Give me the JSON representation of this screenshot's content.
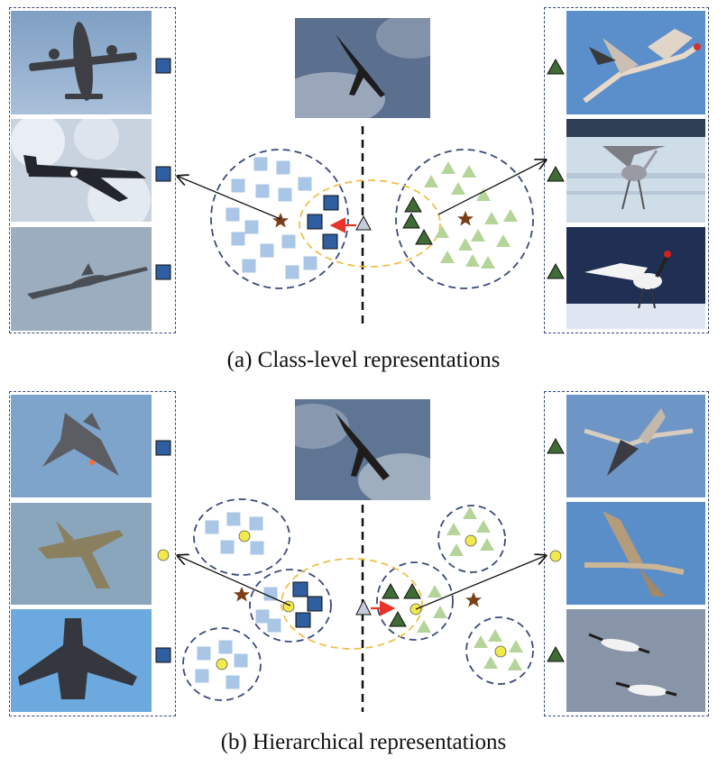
{
  "captions": {
    "a": "(a) Class-level representations",
    "b": "(b) Hierarchical representations"
  },
  "colors": {
    "dark_square": "#2f5fa0",
    "light_square": "#a9c6e6",
    "dark_triangle": "#3f6b34",
    "light_triangle": "#b5d49a",
    "yellow_circle": "#f2ea4a",
    "query_triangle": "#c5cbd8",
    "star": "#7a3f18",
    "prototype_ellipse": "#f1c04a",
    "cluster_ellipse": "#3a4a7a",
    "red_arrow": "#e8342a",
    "panel_border": "#3a4a7a"
  },
  "panels": {
    "a_left_images": [
      "airplane",
      "airplane",
      "airplane"
    ],
    "a_left_markers": [
      "square",
      "square",
      "square"
    ],
    "a_right_images": [
      "crane",
      "crane",
      "crane"
    ],
    "a_right_markers": [
      "triangle",
      "triangle",
      "triangle"
    ],
    "b_left_images": [
      "fighter-jet",
      "fighter-jet",
      "fighter-jet"
    ],
    "b_left_markers": [
      "square",
      "circle",
      "square"
    ],
    "b_right_images": [
      "crane",
      "crane",
      "crane"
    ],
    "b_right_markers": [
      "triangle",
      "circle",
      "triangle"
    ]
  },
  "query_image": "flying bird"
}
